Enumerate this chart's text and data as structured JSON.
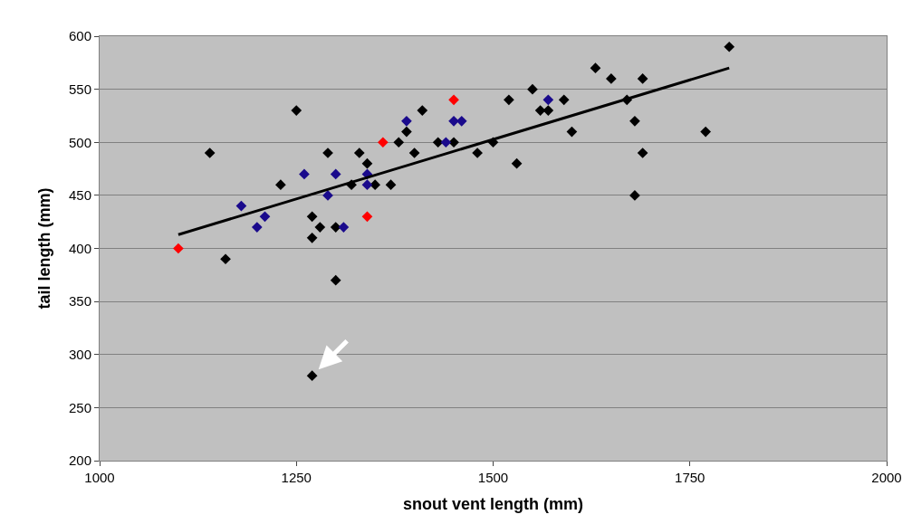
{
  "chart_data": {
    "type": "scatter",
    "xlabel": "snout vent length (mm)",
    "ylabel": "tail length (mm)",
    "xlim": [
      1000,
      2000
    ],
    "xticks": [
      1000,
      1250,
      1500,
      1750,
      2000
    ],
    "ylim": [
      200,
      600
    ],
    "yticks": [
      200,
      250,
      300,
      350,
      400,
      450,
      500,
      550,
      600
    ],
    "grid": "y",
    "marker": "diamond",
    "series": [
      {
        "color": "#000000",
        "x": [
          1140,
          1160,
          1230,
          1250,
          1270,
          1270,
          1280,
          1290,
          1300,
          1300,
          1270,
          1320,
          1330,
          1340,
          1350,
          1370,
          1380,
          1390,
          1400,
          1410,
          1430,
          1450,
          1480,
          1500,
          1520,
          1530,
          1550,
          1560,
          1570,
          1590,
          1600,
          1630,
          1650,
          1670,
          1680,
          1680,
          1690,
          1690,
          1770,
          1800
        ],
        "values": [
          490,
          390,
          460,
          530,
          430,
          410,
          420,
          490,
          420,
          370,
          280,
          460,
          490,
          480,
          460,
          460,
          500,
          510,
          490,
          530,
          500,
          500,
          490,
          500,
          540,
          480,
          550,
          530,
          530,
          540,
          510,
          570,
          560,
          540,
          520,
          450,
          560,
          490,
          510,
          590
        ]
      },
      {
        "color": "#1a0a8c",
        "x": [
          1180,
          1200,
          1210,
          1260,
          1290,
          1300,
          1310,
          1340,
          1340,
          1390,
          1440,
          1450,
          1460,
          1570
        ],
        "values": [
          440,
          420,
          430,
          470,
          450,
          470,
          420,
          470,
          460,
          520,
          500,
          520,
          520,
          540
        ]
      },
      {
        "color": "#ff0000",
        "x": [
          1100,
          1340,
          1360,
          1450
        ],
        "values": [
          400,
          430,
          500,
          540
        ]
      },
      {
        "type": "line",
        "color": "#000000",
        "x": [
          1100,
          1800
        ],
        "values": [
          413,
          570
        ],
        "marker": "none"
      }
    ]
  }
}
